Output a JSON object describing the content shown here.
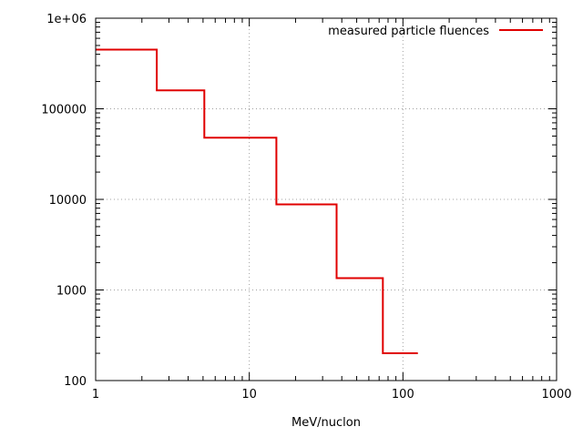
{
  "chart_data": {
    "type": "line",
    "style": "step",
    "title": "",
    "xlabel": "MeV/nuclon",
    "ylabel": "",
    "xscale": "log",
    "yscale": "log",
    "xlim": [
      1,
      1000
    ],
    "ylim": [
      100,
      1000000
    ],
    "grid": true,
    "legend_position": "top-right",
    "x_ticks": [
      {
        "value": 1,
        "label": "1"
      },
      {
        "value": 10,
        "label": "10"
      },
      {
        "value": 100,
        "label": "100"
      },
      {
        "value": 1000,
        "label": "1000"
      }
    ],
    "y_ticks": [
      {
        "value": 100,
        "label": "100"
      },
      {
        "value": 1000,
        "label": "1000"
      },
      {
        "value": 10000,
        "label": "10000"
      },
      {
        "value": 100000,
        "label": "100000"
      },
      {
        "value": 1000000,
        "label": "1e+06"
      }
    ],
    "series": [
      {
        "name": "measured particle fluences",
        "color": "#e00000",
        "x": [
          1,
          2.5,
          2.5,
          5.1,
          5.1,
          15,
          15,
          37,
          37,
          74,
          74,
          125
        ],
        "y": [
          450000,
          450000,
          160000,
          160000,
          48000,
          48000,
          8800,
          8800,
          1350,
          1350,
          200,
          200
        ]
      }
    ]
  }
}
